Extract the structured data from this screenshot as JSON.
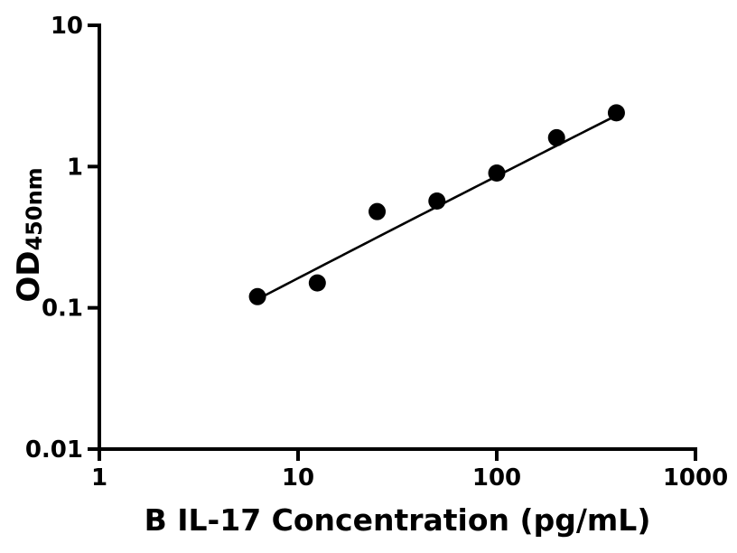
{
  "figure": {
    "background": "#ffffff"
  },
  "chart_data": {
    "type": "scatter",
    "title": "",
    "xlabel": "B IL-17 Concentration (pg/mL)",
    "ylabel_main": "OD",
    "ylabel_sub": "450nm",
    "x_scale": "log",
    "y_scale": "log",
    "xlim": [
      1,
      1000
    ],
    "ylim": [
      0.01,
      10
    ],
    "x_ticks": [
      1,
      10,
      100,
      1000
    ],
    "x_tick_labels": [
      "1",
      "10",
      "100",
      "1000"
    ],
    "y_ticks": [
      0.01,
      0.1,
      1,
      10
    ],
    "y_tick_labels": [
      "0.01",
      "0.1",
      "1",
      "10"
    ],
    "grid": false,
    "legend": false,
    "points": [
      {
        "x": 6.25,
        "y": 0.12
      },
      {
        "x": 12.5,
        "y": 0.15
      },
      {
        "x": 25,
        "y": 0.48
      },
      {
        "x": 50,
        "y": 0.57
      },
      {
        "x": 100,
        "y": 0.9
      },
      {
        "x": 200,
        "y": 1.6
      },
      {
        "x": 400,
        "y": 2.4
      }
    ],
    "fit_line": {
      "x_range": [
        6.25,
        400
      ],
      "loglog_quadratic": {
        "a": -1.5247,
        "b": 0.74021,
        "c": -0.005868
      }
    },
    "marker_color": "#000000",
    "line_color": "#000000",
    "axis_color": "#000000"
  }
}
